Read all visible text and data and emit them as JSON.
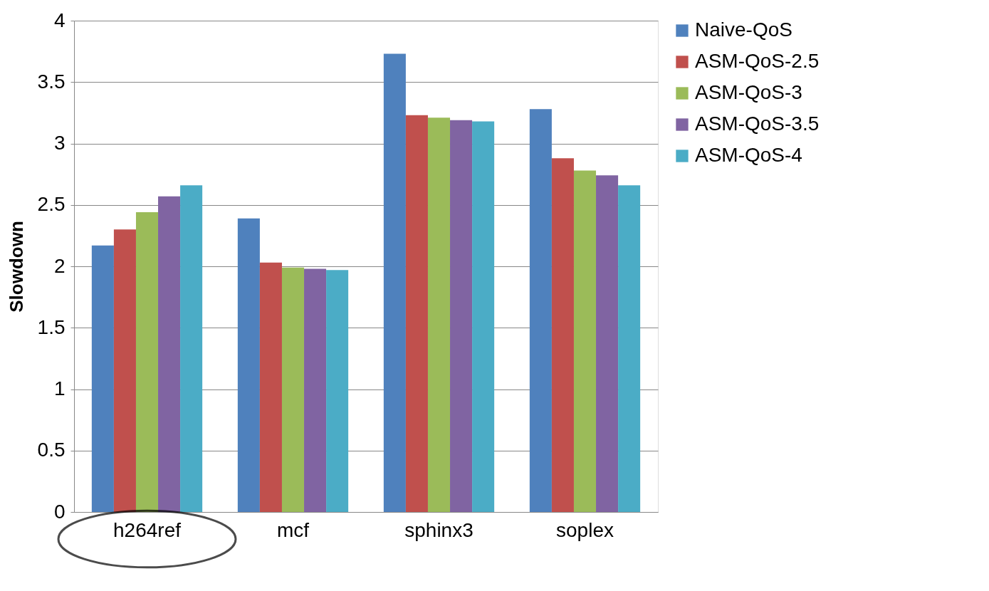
{
  "chart_data": {
    "type": "bar",
    "ylabel": "Slowdown",
    "categories": [
      "h264ref",
      "mcf",
      "sphinx3",
      "soplex"
    ],
    "series": [
      {
        "name": "Naive-QoS",
        "color": "#4f81bd",
        "values": [
          2.17,
          2.39,
          3.73,
          3.28
        ]
      },
      {
        "name": "ASM-QoS-2.5",
        "color": "#c0504d",
        "values": [
          2.3,
          2.03,
          3.23,
          2.88
        ]
      },
      {
        "name": "ASM-QoS-3",
        "color": "#9bbb59",
        "values": [
          2.44,
          1.99,
          3.21,
          2.78
        ]
      },
      {
        "name": "ASM-QoS-3.5",
        "color": "#8064a2",
        "values": [
          2.57,
          1.98,
          3.19,
          2.74
        ]
      },
      {
        "name": "ASM-QoS-4",
        "color": "#4bacc6",
        "values": [
          2.66,
          1.97,
          3.18,
          2.66
        ]
      }
    ],
    "ylim": [
      0,
      4
    ],
    "yticks": [
      0,
      0.5,
      1,
      1.5,
      2,
      2.5,
      3,
      3.5,
      4
    ],
    "grid": "y",
    "legend": "right"
  }
}
